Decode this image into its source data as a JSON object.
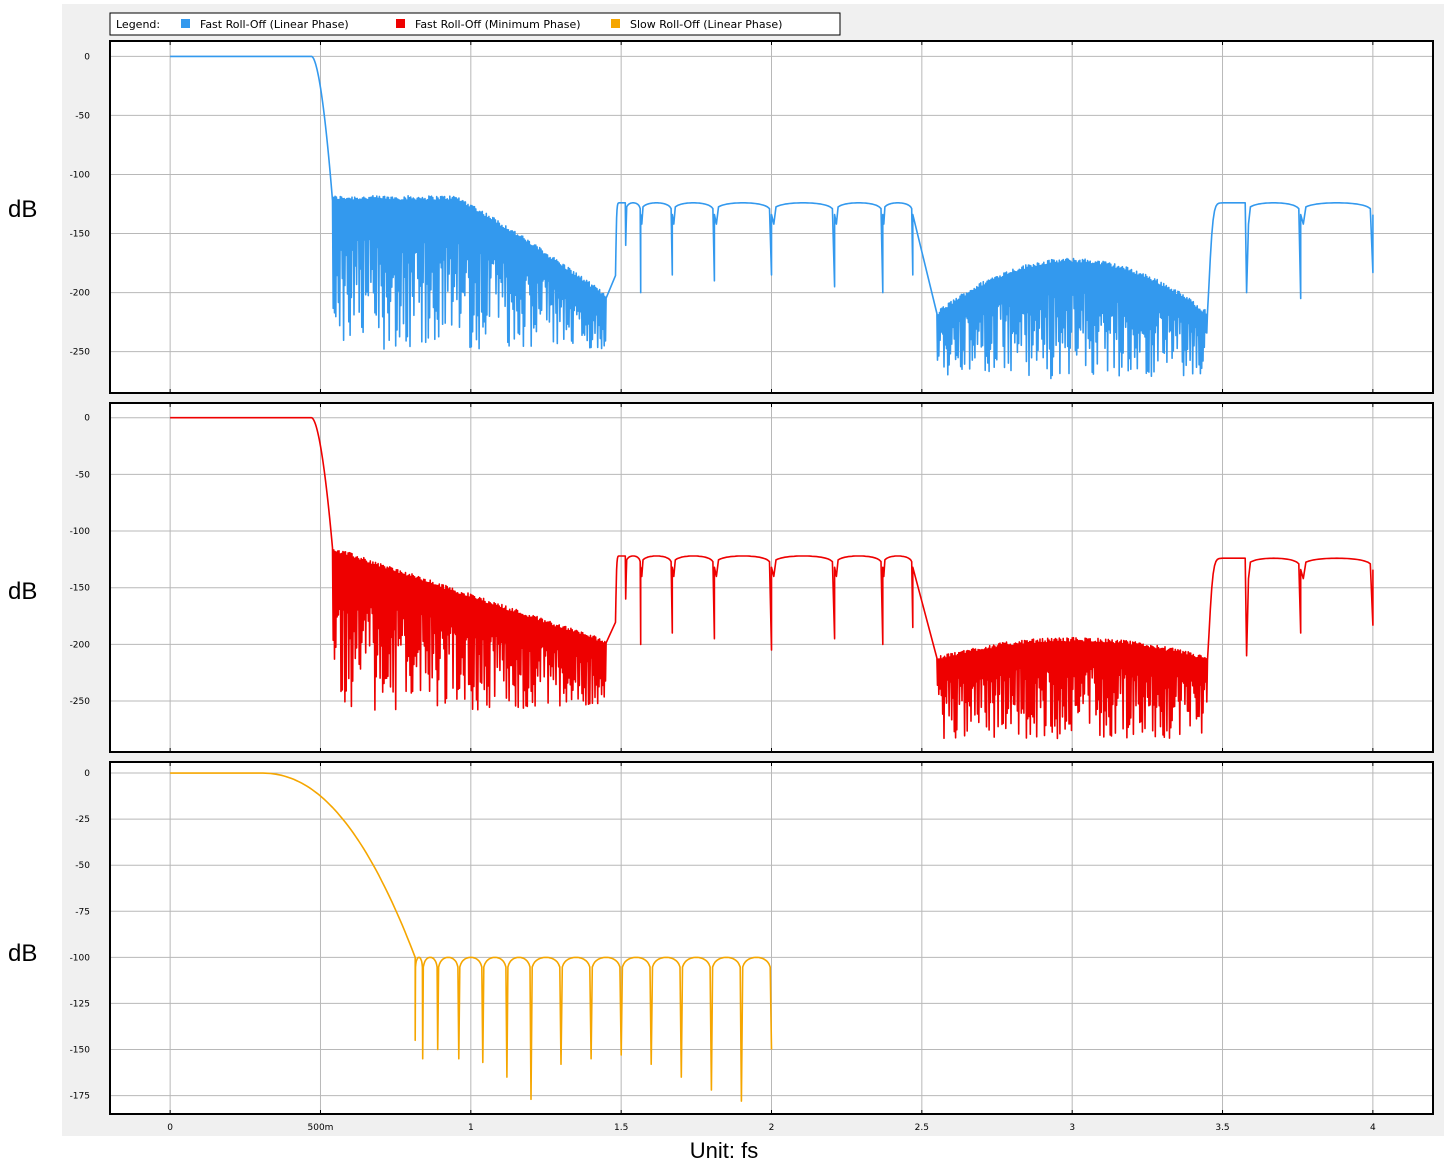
{
  "legend": {
    "title": "Legend:",
    "entries": [
      {
        "label": "Fast Roll-Off (Linear Phase)",
        "color": "#3399ee"
      },
      {
        "label": "Fast Roll-Off (Minimum Phase)",
        "color": "#ee0000"
      },
      {
        "label": "Slow Roll-Off (Linear Phase)",
        "color": "#f5a600"
      }
    ]
  },
  "x_unit_label": "Unit: fs",
  "chart_data": [
    {
      "type": "line",
      "title": "",
      "xlabel": "Unit: fs",
      "ylabel": "dB",
      "series": [
        {
          "name": "Fast Roll-Off (Linear Phase)",
          "color": "#3399ee"
        }
      ],
      "xlim": [
        -0.2,
        4.2
      ],
      "ylim": [
        -285,
        13
      ],
      "x_ticks": [
        0,
        0.5,
        1,
        1.5,
        2,
        2.5,
        3,
        3.5,
        4
      ],
      "x_tick_labels": [
        "0",
        "500m",
        "1",
        "1.5",
        "2",
        "2.5",
        "3",
        "3.5",
        "4"
      ],
      "y_ticks": [
        0,
        -50,
        -100,
        -150,
        -200,
        -250
      ],
      "grid": true,
      "passband": {
        "x": [
          0,
          0.47
        ],
        "y": 0
      },
      "transition": {
        "x": [
          0.47,
          0.54
        ],
        "y": [
          0,
          -122
        ]
      },
      "stopband_floor_max": -122,
      "stopband_floor_min": -248,
      "image_regions": [
        {
          "x": [
            1.48,
            2.5
          ],
          "peak": -124,
          "nulls_x": [
            1.515,
            1.565,
            1.67,
            1.81,
            2.0,
            2.21,
            2.37,
            2.47
          ],
          "nulls_y": [
            -160,
            -200,
            -185,
            -190,
            -185,
            -195,
            -200,
            -185
          ]
        },
        {
          "x": [
            3.45,
            4.0
          ],
          "peak": -124,
          "nulls_x": [
            3.58,
            3.76,
            4.0
          ],
          "nulls_y": [
            -200,
            -205,
            -183
          ]
        }
      ],
      "noise_regions": [
        {
          "x": [
            0.54,
            1.45
          ],
          "top_y_start": -122,
          "top_y_end": -205,
          "spike_min": -248
        },
        {
          "x": [
            2.55,
            3.45
          ],
          "top_y_center": -175,
          "top_y_edges": -220,
          "spike_min": -273
        }
      ]
    },
    {
      "type": "line",
      "title": "",
      "xlabel": "Unit: fs",
      "ylabel": "dB",
      "series": [
        {
          "name": "Fast Roll-Off (Minimum Phase)",
          "color": "#ee0000"
        }
      ],
      "xlim": [
        -0.2,
        4.2
      ],
      "ylim": [
        -295,
        13
      ],
      "x_ticks": [
        0,
        0.5,
        1,
        1.5,
        2,
        2.5,
        3,
        3.5,
        4
      ],
      "x_tick_labels": [
        "0",
        "500m",
        "1",
        "1.5",
        "2",
        "2.5",
        "3",
        "3.5",
        "4"
      ],
      "y_ticks": [
        0,
        -50,
        -100,
        -150,
        -200,
        -250
      ],
      "grid": true,
      "passband": {
        "x": [
          0,
          0.47
        ],
        "y": 0
      },
      "transition": {
        "x": [
          0.47,
          0.54
        ],
        "y": [
          0,
          -115
        ]
      },
      "image_regions": [
        {
          "x": [
            1.48,
            2.5
          ],
          "peak": -122,
          "nulls_x": [
            1.515,
            1.565,
            1.67,
            1.81,
            2.0,
            2.21,
            2.37,
            2.47
          ],
          "nulls_y": [
            -160,
            -200,
            -190,
            -195,
            -205,
            -195,
            -200,
            -185
          ]
        },
        {
          "x": [
            3.45,
            4.0
          ],
          "peak": -124,
          "nulls_x": [
            3.58,
            3.76,
            4.0
          ],
          "nulls_y": [
            -210,
            -190,
            -183
          ]
        }
      ],
      "noise_regions": [
        {
          "x": [
            0.54,
            1.45
          ],
          "top_y_start": -118,
          "top_y_end": -200,
          "spike_min": -258
        },
        {
          "x": [
            2.55,
            3.45
          ],
          "top_y_center": -198,
          "top_y_edges": -215,
          "spike_min": -283
        }
      ]
    },
    {
      "type": "line",
      "title": "",
      "xlabel": "Unit: fs",
      "ylabel": "dB",
      "series": [
        {
          "name": "Slow Roll-Off (Linear Phase)",
          "color": "#f5a600"
        }
      ],
      "xlim": [
        -0.2,
        4.2
      ],
      "ylim": [
        -185,
        6
      ],
      "x_ticks": [
        0,
        0.5,
        1,
        1.5,
        2,
        2.5,
        3,
        3.5,
        4
      ],
      "x_tick_labels": [
        "0",
        "500m",
        "1",
        "1.5",
        "2",
        "2.5",
        "3",
        "3.5",
        "4"
      ],
      "y_ticks": [
        0,
        -25,
        -50,
        -75,
        -100,
        -125,
        -150,
        -175
      ],
      "grid": true,
      "passband": {
        "x": [
          0,
          0.4
        ],
        "y": 0
      },
      "transition": {
        "x": [
          0.4,
          0.815
        ],
        "y": [
          0,
          -100
        ]
      },
      "stopband": {
        "x": [
          0.815,
          2.0
        ],
        "peak": -100,
        "nulls_x": [
          0.815,
          0.84,
          0.89,
          0.96,
          1.04,
          1.12,
          1.2,
          1.3,
          1.4,
          1.5,
          1.6,
          1.7,
          1.8,
          1.9,
          2.0
        ],
        "nulls_y": [
          -145,
          -155,
          -150,
          -155,
          -157,
          -165,
          -177,
          -158,
          -155,
          -153,
          -158,
          -165,
          -172,
          -178,
          -150
        ]
      }
    }
  ]
}
